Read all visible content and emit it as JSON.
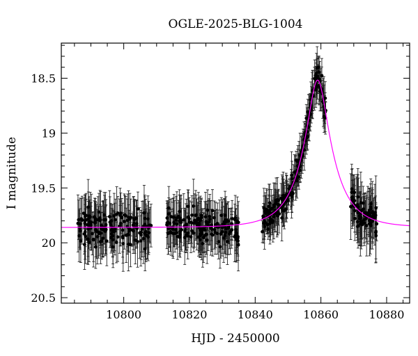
{
  "chart_data": {
    "type": "scatter",
    "title": "OGLE-2025-BLG-1004",
    "xlabel": "HJD - 2450000",
    "ylabel": "I magnitude",
    "xlim": [
      10781,
      10887
    ],
    "ylim": [
      20.55,
      18.18
    ],
    "y_inverted": true,
    "xticks": [
      10800,
      10820,
      10840,
      10860,
      10880
    ],
    "yticks": [
      18.5,
      19,
      19.5,
      20,
      20.5
    ],
    "ytick_labels": [
      "18.5",
      "19",
      "19.5",
      "20",
      "20.5"
    ],
    "grid": false,
    "colors": {
      "points": "#000000",
      "errorbars": "#222222",
      "model": "#ff00ff"
    },
    "series": [
      {
        "type": "scatter_with_errorbars",
        "observing_windows": [
          {
            "x_start": 10786,
            "x_end": 10808.5,
            "n": 160,
            "y_mean": 19.86,
            "y_scatter": 0.11,
            "err_min": 0.14,
            "err_max": 0.26
          },
          {
            "x_start": 10813,
            "x_end": 10835,
            "n": 165,
            "y_mean": 19.86,
            "y_scatter": 0.11,
            "err_min": 0.13,
            "err_max": 0.25
          },
          {
            "x_start": 10842,
            "x_end": 10861.5,
            "n": 220,
            "follows_model": true,
            "y_scatter": 0.08,
            "err_min": 0.06,
            "err_max": 0.22
          },
          {
            "x_start": 10869,
            "x_end": 10877,
            "n": 80,
            "follows_model": true,
            "y_scatter": 0.1,
            "err_min": 0.12,
            "err_max": 0.3
          }
        ]
      },
      {
        "type": "line",
        "model": {
          "baseline_mag": 19.86,
          "t0": 10859.0,
          "u0": 0.3,
          "tE": 9.0
        }
      }
    ]
  }
}
